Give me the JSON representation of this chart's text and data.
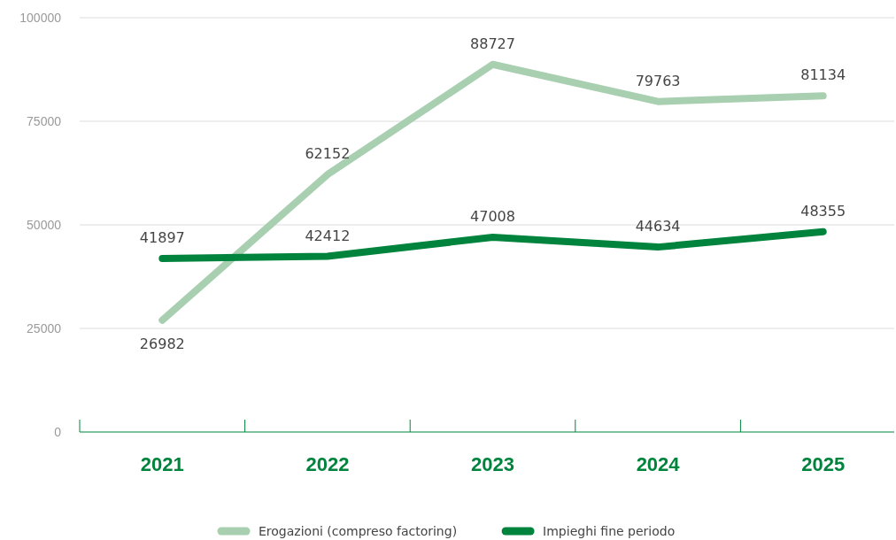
{
  "chart_data": {
    "type": "line",
    "categories": [
      "2021",
      "2022",
      "2023",
      "2024",
      "2025"
    ],
    "series": [
      {
        "name": "Erogazioni (compreso factoring)",
        "color": "#a8cfb0",
        "values": [
          26982,
          62152,
          88727,
          79763,
          81134
        ]
      },
      {
        "name": "Impieghi fine periodo",
        "color": "#00843d",
        "values": [
          41897,
          42412,
          47008,
          44634,
          48355
        ]
      }
    ],
    "ylim": [
      0,
      100000
    ],
    "yticks": [
      0,
      25000,
      50000,
      75000,
      100000
    ],
    "grid": "y",
    "legend": "bottom",
    "data_labels": true,
    "marker": "none",
    "line_style": "solid"
  }
}
